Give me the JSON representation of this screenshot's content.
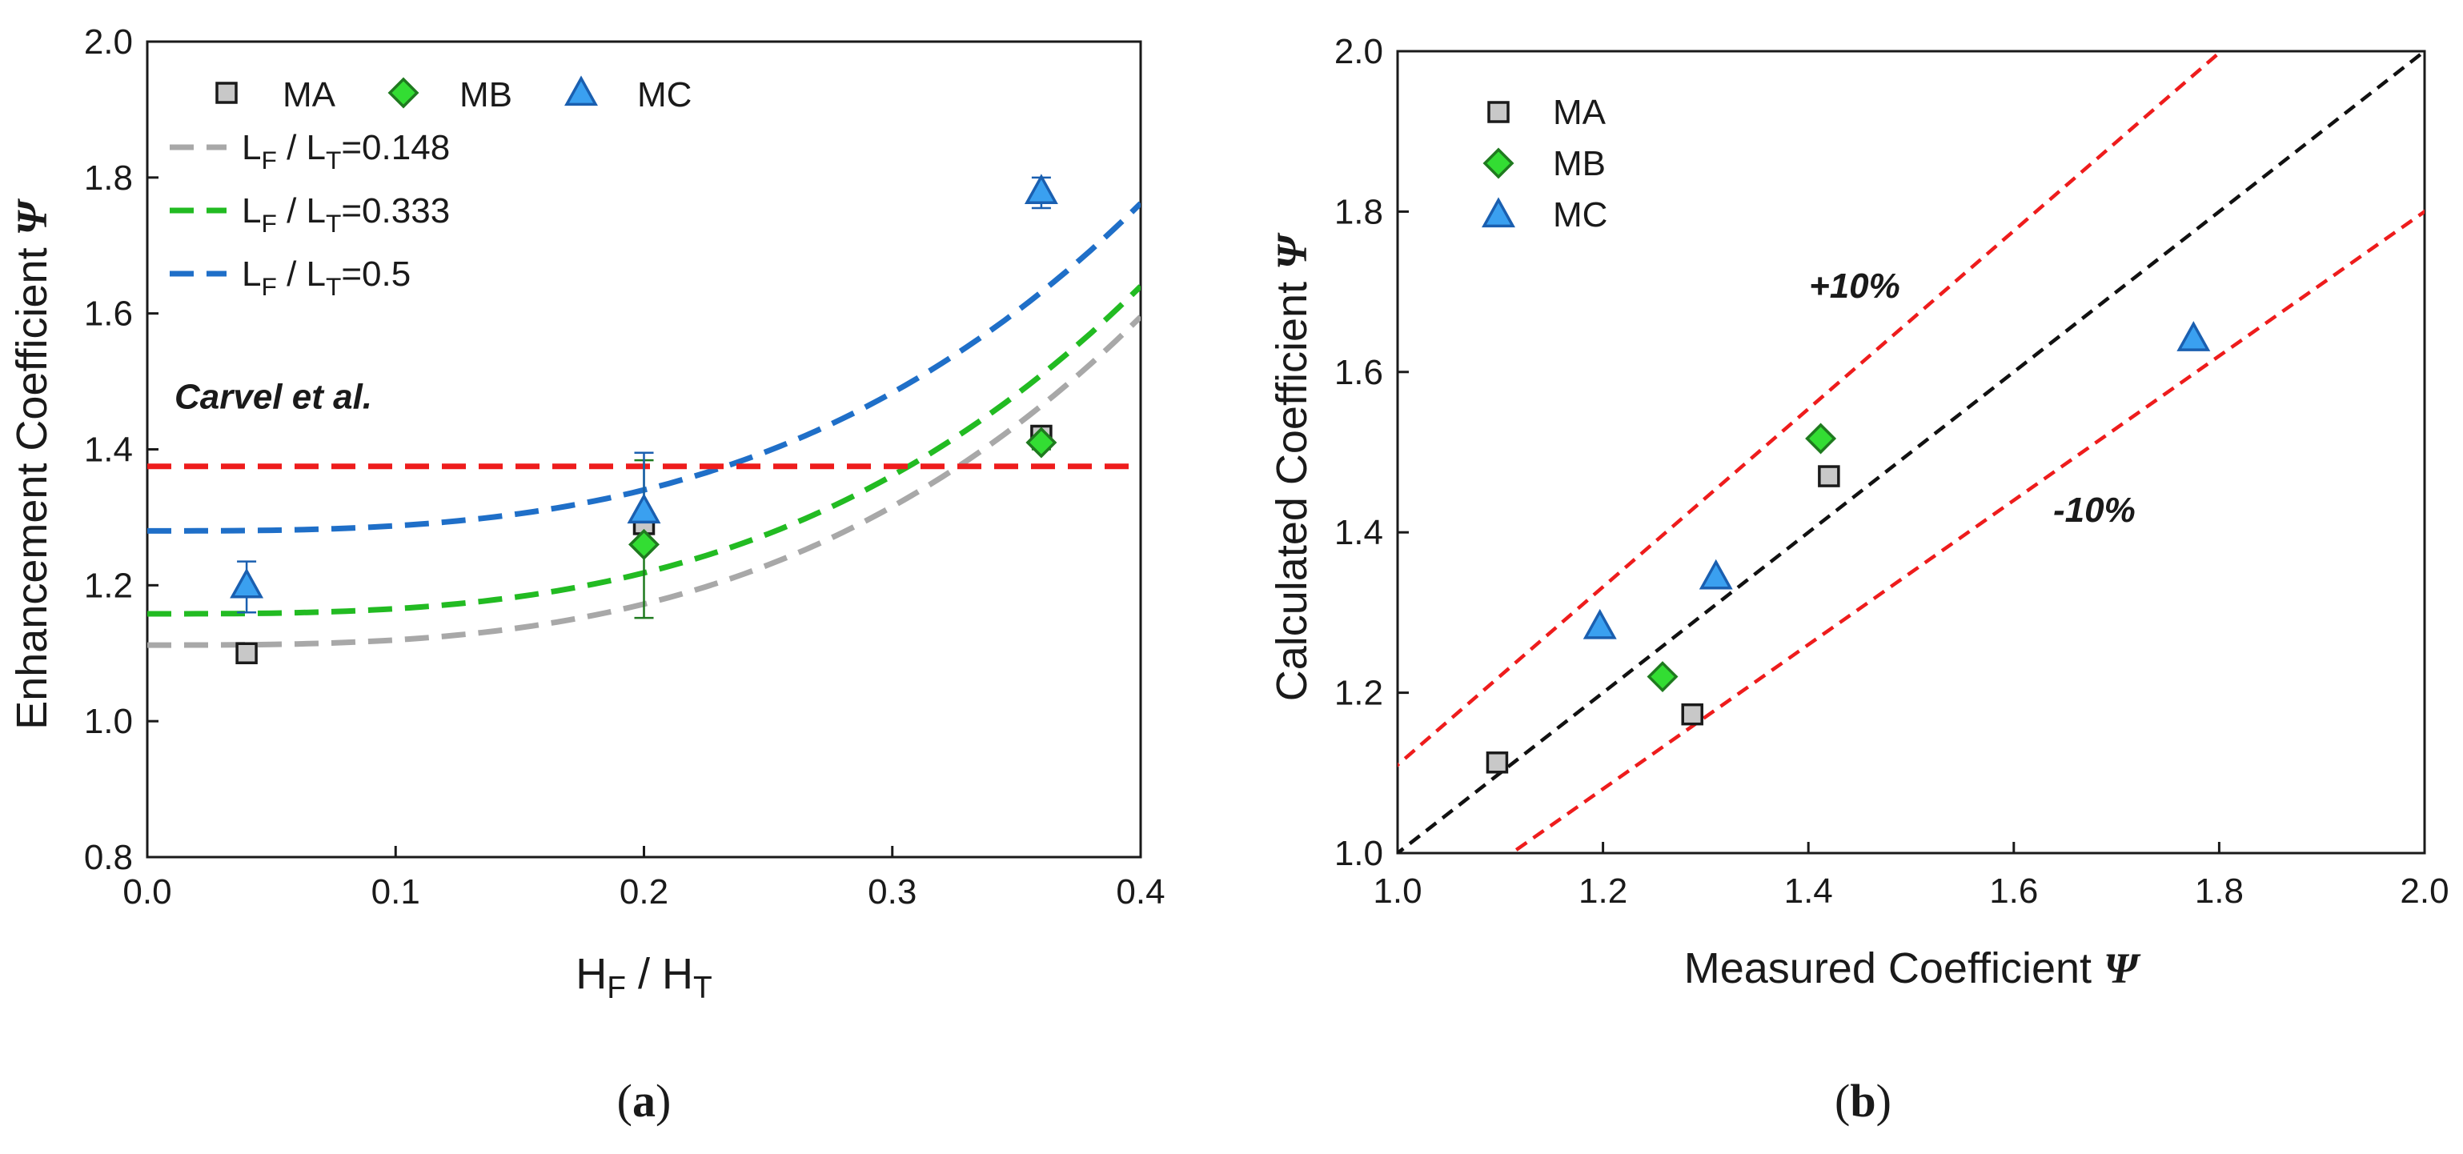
{
  "colors": {
    "ma_fill": "#c8c8c8",
    "ma_stroke": "#1a1a1a",
    "mb_fill": "#33dd33",
    "mb_stroke": "#1f7a1f",
    "mc_fill": "#3aa0f0",
    "mc_stroke": "#1a5fb0",
    "curve_148": "#a8a8a8",
    "curve_333": "#22bb22",
    "curve_5": "#1f6fc8",
    "carvel": "#ee1c1c",
    "diag": "#111111",
    "band": "#ee1c1c"
  },
  "chart_data": [
    {
      "type": "scatter",
      "panel": "a",
      "caption": "(a)",
      "xlabel": "H_F / H_T",
      "ylabel": "Enhancement Coefficient Ψ",
      "xlim": [
        0.0,
        0.4
      ],
      "ylim": [
        0.8,
        2.0
      ],
      "xticks": [
        "0.0",
        "0.1",
        "0.2",
        "0.3",
        "0.4"
      ],
      "yticks": [
        "0.8",
        "1.0",
        "1.2",
        "1.4",
        "1.6",
        "1.8",
        "2.0"
      ],
      "legend_position": "top-left",
      "series": [
        {
          "name": "MA",
          "marker": "square",
          "x": [
            0.04,
            0.2,
            0.36
          ],
          "y": [
            1.1,
            1.29,
            1.42
          ]
        },
        {
          "name": "MB",
          "marker": "diamond",
          "x": [
            0.2,
            0.36
          ],
          "y": [
            1.26,
            1.41
          ],
          "error": [
            [
              1.152,
              1.384
            ],
            [
              1.4,
              1.425
            ]
          ]
        },
        {
          "name": "MC",
          "marker": "triangle",
          "x": [
            0.04,
            0.2,
            0.36
          ],
          "y": [
            1.2,
            1.31,
            1.78
          ],
          "error": [
            [
              1.16,
              1.235
            ],
            [
              1.26,
              1.395
            ],
            [
              1.755,
              1.8
            ]
          ]
        }
      ],
      "curves": [
        {
          "name": "L_F / L_T=0.148",
          "ratio": "0.148",
          "y0": 1.112,
          "y_end": 1.595
        },
        {
          "name": "L_F / L_T=0.333",
          "ratio": "0.333",
          "y0": 1.158,
          "y_end": 1.64
        },
        {
          "name": "L_F / L_T=0.5",
          "ratio": "0.5",
          "y0": 1.28,
          "y_end": 1.762
        }
      ],
      "reference_line": {
        "label": "Carvel et al.",
        "y": 1.375
      }
    },
    {
      "type": "scatter",
      "panel": "b",
      "caption": "(b)",
      "xlabel": "Measured Coefficient Ψ",
      "ylabel": "Calculated Coefficient Ψ",
      "xlim": [
        1.0,
        2.0
      ],
      "ylim": [
        1.0,
        2.0
      ],
      "xticks": [
        "1.0",
        "1.2",
        "1.4",
        "1.6",
        "1.8",
        "2.0"
      ],
      "yticks": [
        "1.0",
        "1.2",
        "1.4",
        "1.6",
        "1.8",
        "2.0"
      ],
      "legend_position": "top-left",
      "series": [
        {
          "name": "MA",
          "marker": "square",
          "x": [
            1.097,
            1.287,
            1.42
          ],
          "y": [
            1.113,
            1.173,
            1.47
          ]
        },
        {
          "name": "MB",
          "marker": "diamond",
          "x": [
            1.258,
            1.412
          ],
          "y": [
            1.22,
            1.517
          ]
        },
        {
          "name": "MC",
          "marker": "triangle",
          "x": [
            1.197,
            1.31,
            1.775
          ],
          "y": [
            1.283,
            1.345,
            1.642
          ]
        }
      ],
      "reference_lines": [
        {
          "label": "",
          "slope": 1.0
        },
        {
          "label": "+10%",
          "slope": 1.11
        },
        {
          "label": "-10%",
          "slope": 0.9
        }
      ]
    }
  ]
}
